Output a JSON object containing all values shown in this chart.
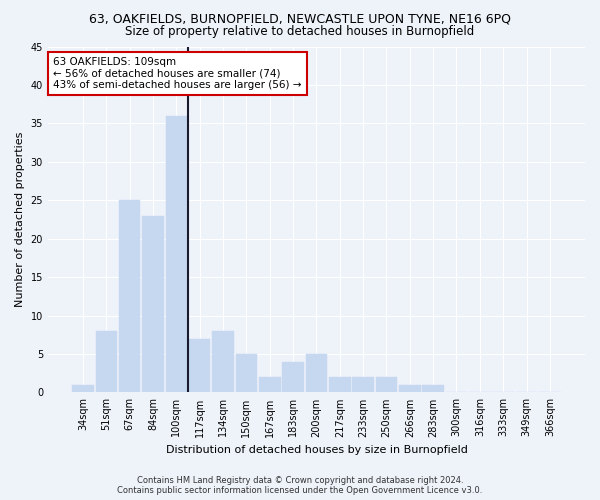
{
  "title": "63, OAKFIELDS, BURNOPFIELD, NEWCASTLE UPON TYNE, NE16 6PQ",
  "subtitle": "Size of property relative to detached houses in Burnopfield",
  "xlabel": "Distribution of detached houses by size in Burnopfield",
  "ylabel": "Number of detached properties",
  "categories": [
    "34sqm",
    "51sqm",
    "67sqm",
    "84sqm",
    "100sqm",
    "117sqm",
    "134sqm",
    "150sqm",
    "167sqm",
    "183sqm",
    "200sqm",
    "217sqm",
    "233sqm",
    "250sqm",
    "266sqm",
    "283sqm",
    "300sqm",
    "316sqm",
    "333sqm",
    "349sqm",
    "366sqm"
  ],
  "values": [
    1,
    8,
    25,
    23,
    36,
    7,
    8,
    5,
    2,
    4,
    5,
    2,
    2,
    2,
    1,
    1,
    0,
    0,
    0,
    0,
    0
  ],
  "bar_color": "#c5d8f0",
  "bar_edge_color": "#c5d8f0",
  "highlight_bar_index": 4,
  "vline_x": 4.5,
  "ylim": [
    0,
    45
  ],
  "yticks": [
    0,
    5,
    10,
    15,
    20,
    25,
    30,
    35,
    40,
    45
  ],
  "annotation_text": "63 OAKFIELDS: 109sqm\n← 56% of detached houses are smaller (74)\n43% of semi-detached houses are larger (56) →",
  "annotation_box_color": "#ffffff",
  "annotation_box_edge": "#cc0000",
  "footer_line1": "Contains HM Land Registry data © Crown copyright and database right 2024.",
  "footer_line2": "Contains public sector information licensed under the Open Government Licence v3.0.",
  "background_color": "#eef2f9",
  "plot_bg_color": "#eef2f9",
  "grid_color": "#ffffff",
  "title_fontsize": 9,
  "subtitle_fontsize": 8.5,
  "ylabel_fontsize": 8,
  "xlabel_fontsize": 8,
  "tick_fontsize": 7,
  "annotation_fontsize": 7.5,
  "footer_fontsize": 6
}
